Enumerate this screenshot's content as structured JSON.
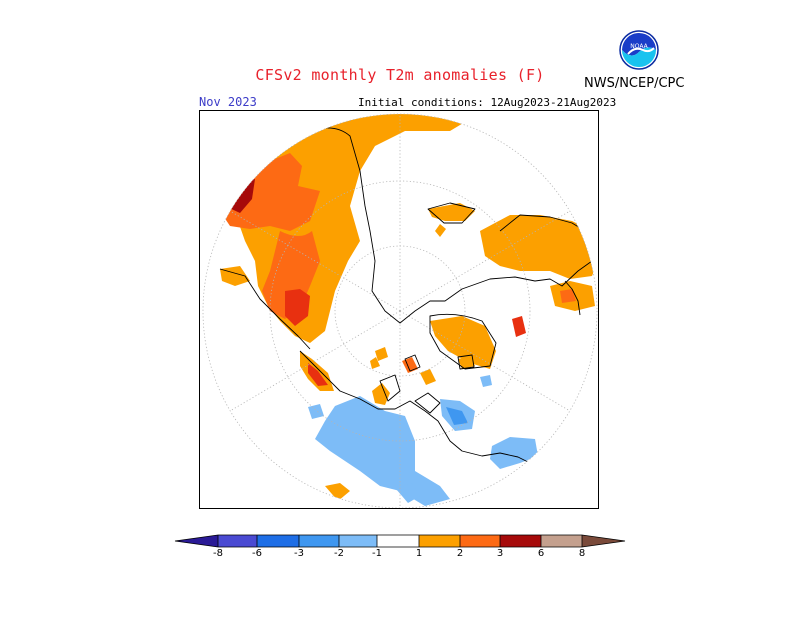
{
  "header": {
    "title": "CFSv2 monthly T2m anomalies (F)",
    "target_month": "Nov 2023",
    "initial_conditions": "Initial conditions: 12Aug2023-21Aug2023",
    "agency": "NWS/NCEP/CPC",
    "logo_text": "NOAA"
  },
  "map": {
    "projection": "north-polar-stereographic",
    "variable": "2m temperature anomaly"
  },
  "colorbar": {
    "labels": [
      "-8",
      "-6",
      "-3",
      "-2",
      "-1",
      "1",
      "2",
      "3",
      "6",
      "8"
    ],
    "colors": {
      "lt_-8": "#2a1a96",
      "-8_-6": "#4a4ad2",
      "-6_-3": "#1e6ee6",
      "-3_-2": "#3f97f0",
      "-2_-1": "#7dbcf7",
      "-1_1": "#ffffff",
      "1_2": "#fca000",
      "2_3": "#fd6a14",
      "3_6": "#e83010",
      "6_8": "#a60a0a",
      "8_gt": "#c4a08e",
      "gt_8": "#7a4a3a"
    }
  },
  "colors": {
    "title": "#e8212b",
    "month": "#3c3cc8",
    "coast": "#000000",
    "grid": "#b4b4b4"
  }
}
